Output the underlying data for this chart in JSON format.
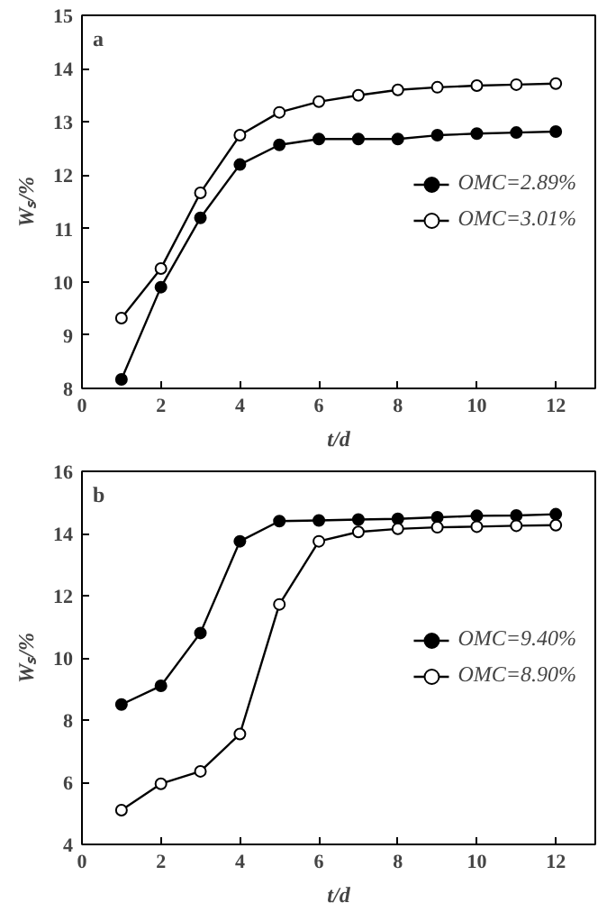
{
  "chart_data": [
    {
      "type": "line",
      "annotations": [
        "a"
      ],
      "xlabel": "t/d",
      "ylabel": "Wₛ/%",
      "x": [
        1,
        2,
        3,
        4,
        5,
        6,
        7,
        8,
        9,
        10,
        11,
        12
      ],
      "xlim": [
        0,
        13
      ],
      "xticks": [
        0,
        2,
        4,
        6,
        8,
        10,
        12
      ],
      "ylim": [
        8,
        15
      ],
      "yticks": [
        8,
        9,
        10,
        11,
        12,
        13,
        14,
        15
      ],
      "marker": "circle",
      "legend": "right",
      "grid": false,
      "series": [
        {
          "name": "OMC=2.89%",
          "color": "#000000",
          "values": [
            8.17,
            9.9,
            11.2,
            12.2,
            12.57,
            12.68,
            12.68,
            12.68,
            12.75,
            12.78,
            12.8,
            12.82
          ]
        },
        {
          "name": "OMC=3.01%",
          "color": "#000000",
          "values": [
            9.32,
            10.25,
            11.67,
            12.75,
            13.18,
            13.38,
            13.5,
            13.6,
            13.65,
            13.68,
            13.7,
            13.72
          ]
        }
      ]
    },
    {
      "type": "line",
      "annotations": [
        "b"
      ],
      "xlabel": "t/d",
      "ylabel": "Wₛ/%",
      "x": [
        1,
        2,
        3,
        4,
        5,
        6,
        7,
        8,
        9,
        10,
        11,
        12
      ],
      "xlim": [
        0,
        13
      ],
      "xticks": [
        0,
        2,
        4,
        6,
        8,
        10,
        12
      ],
      "ylim": [
        4,
        16
      ],
      "yticks": [
        4,
        6,
        8,
        10,
        12,
        14,
        16
      ],
      "marker": "circle",
      "legend": "right",
      "grid": false,
      "series": [
        {
          "name": "OMC=9.40%",
          "color": "#000000",
          "values": [
            8.5,
            9.1,
            10.8,
            13.75,
            14.4,
            14.42,
            14.45,
            14.47,
            14.52,
            14.57,
            14.58,
            14.62
          ]
        },
        {
          "name": "OMC=8.90%",
          "color": "#000000",
          "values": [
            5.1,
            5.95,
            6.35,
            7.55,
            11.72,
            13.75,
            14.05,
            14.15,
            14.2,
            14.22,
            14.25,
            14.27
          ]
        }
      ]
    }
  ]
}
